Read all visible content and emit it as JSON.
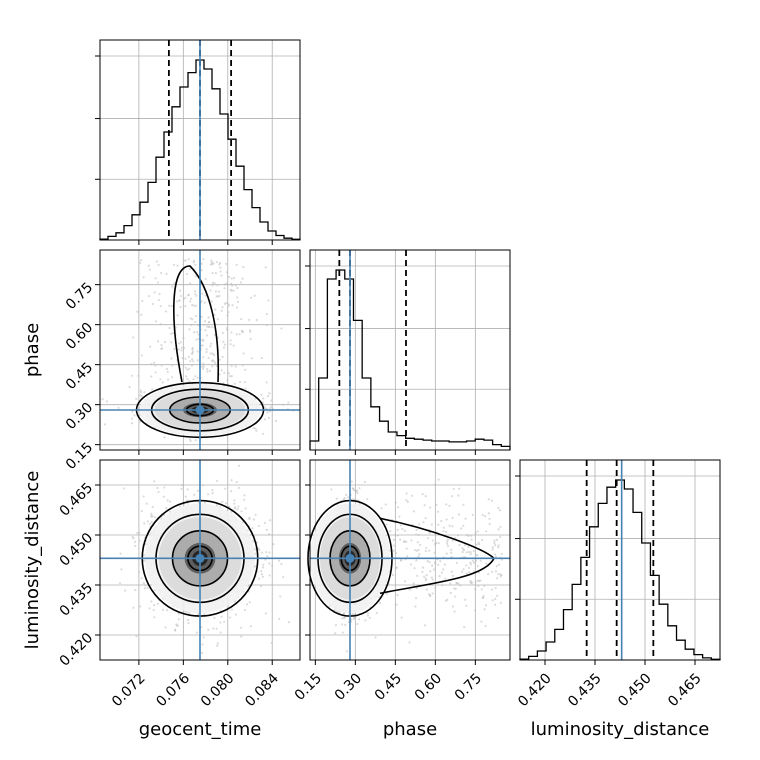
{
  "chart_data": {
    "type": "corner",
    "parameters": [
      "geocent_time",
      "phase",
      "luminosity_distance"
    ],
    "truths": {
      "geocent_time": 0.0775,
      "phase": 0.28,
      "luminosity_distance": 0.443
    },
    "ranges": {
      "geocent_time": [
        0.0685,
        0.0865
      ],
      "phase": [
        0.13,
        0.88
      ],
      "luminosity_distance": [
        0.4125,
        0.4725
      ]
    },
    "ticks": {
      "geocent_time": [
        "0.072",
        "0.076",
        "0.080",
        "0.084"
      ],
      "phase": [
        "0.15",
        "0.30",
        "0.45",
        "0.60",
        "0.75"
      ],
      "luminosity_distance": [
        "0.420",
        "0.435",
        "0.450",
        "0.465"
      ]
    },
    "quantiles": {
      "geocent_time": [
        0.0747,
        0.0775,
        0.0803
      ],
      "phase": [
        0.24,
        0.28,
        0.49
      ],
      "luminosity_distance": [
        0.4325,
        0.4415,
        0.4525
      ]
    },
    "histograms": {
      "geocent_time": [
        0.005,
        0.02,
        0.04,
        0.08,
        0.14,
        0.21,
        0.32,
        0.46,
        0.6,
        0.74,
        0.85,
        0.93,
        1.0,
        0.95,
        0.84,
        0.7,
        0.56,
        0.41,
        0.28,
        0.18,
        0.1,
        0.05,
        0.025,
        0.01,
        0.004
      ],
      "phase": [
        0.05,
        0.4,
        0.95,
        1.0,
        0.95,
        0.72,
        0.4,
        0.24,
        0.16,
        0.1,
        0.08,
        0.065,
        0.06,
        0.055,
        0.05,
        0.05,
        0.045,
        0.045,
        0.05,
        0.06,
        0.055,
        0.03,
        0.02
      ],
      "luminosity_distance": [
        0.005,
        0.02,
        0.05,
        0.1,
        0.17,
        0.28,
        0.42,
        0.57,
        0.74,
        0.87,
        0.96,
        1.0,
        0.95,
        0.82,
        0.65,
        0.47,
        0.31,
        0.19,
        0.11,
        0.06,
        0.03,
        0.012,
        0.004
      ]
    },
    "colors": {
      "truth": "#4682b4",
      "contour": "#000000",
      "grid": "#b0b0b0",
      "points": "#bdbdbd"
    }
  }
}
